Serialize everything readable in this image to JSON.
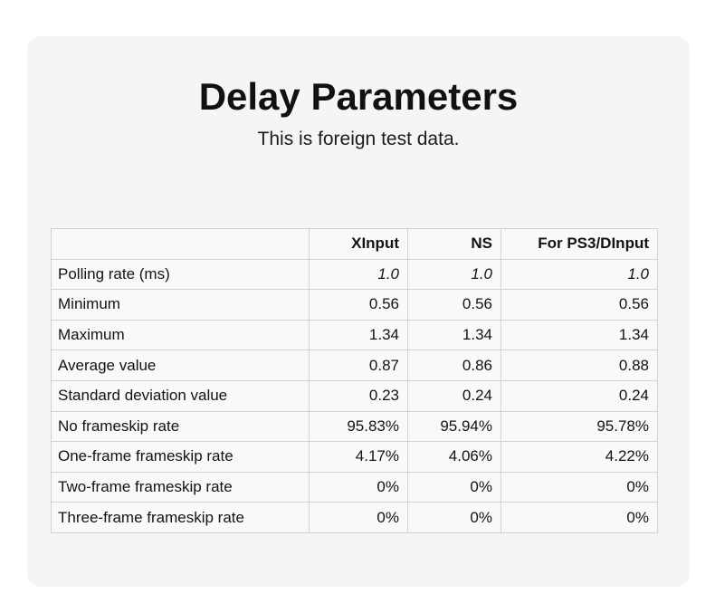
{
  "page": {
    "title": "Delay Parameters",
    "subtitle": "This is foreign test data."
  },
  "table": {
    "columns": [
      "",
      "XInput",
      "NS",
      "For PS3/DInput"
    ],
    "rows": [
      {
        "label": "Polling rate (ms)",
        "values": [
          "1.0",
          "1.0",
          "1.0"
        ],
        "italic": true
      },
      {
        "label": "Minimum",
        "values": [
          "0.56",
          "0.56",
          "0.56"
        ]
      },
      {
        "label": "Maximum",
        "values": [
          "1.34",
          "1.34",
          "1.34"
        ]
      },
      {
        "label": "Average value",
        "values": [
          "0.87",
          "0.86",
          "0.88"
        ]
      },
      {
        "label": "Standard deviation value",
        "values": [
          "0.23",
          "0.24",
          "0.24"
        ]
      },
      {
        "label": "No frameskip rate",
        "values": [
          "95.83%",
          "95.94%",
          "95.78%"
        ]
      },
      {
        "label": "One-frame frameskip rate",
        "values": [
          "4.17%",
          "4.06%",
          "4.22%"
        ]
      },
      {
        "label": "Two-frame frameskip rate",
        "values": [
          "0%",
          "0%",
          "0%"
        ]
      },
      {
        "label": "Three-frame frameskip rate",
        "values": [
          "0%",
          "0%",
          "0%"
        ]
      }
    ]
  },
  "colors": {
    "page_background": "#ffffff",
    "card_background": "#f5f5f5",
    "cell_background": "#f9f9f9",
    "table_border": "#d2d2d2",
    "text": "#111111"
  }
}
